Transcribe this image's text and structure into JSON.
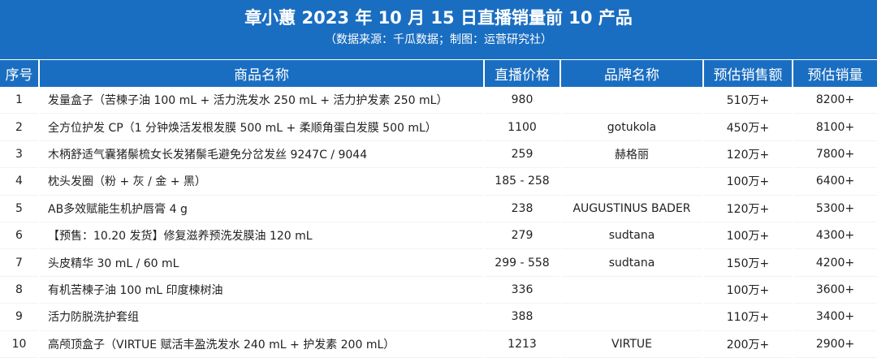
{
  "header": {
    "title": "章小蕙 2023 年 10 月 15 日直播销量前 10 产品",
    "subtitle": "（数据来源：千瓜数据；制图：运营研究社）"
  },
  "colors": {
    "accent": "#1a6ec1",
    "text": "#222222",
    "background": "#ffffff"
  },
  "table": {
    "columns": [
      "序号",
      "商品名称",
      "直播价格",
      "品牌名称",
      "预估销售额",
      "预估销量"
    ],
    "rows": [
      {
        "rank": "1",
        "name": "发量盒子（苦楝子油 100 mL + 活力洗发水 250 mL + 活力护发素 250 mL）",
        "price": "980",
        "brand": "",
        "sales": "510万+",
        "volume": "8200+"
      },
      {
        "rank": "2",
        "name": "全方位护发 CP（1 分钟焕活发根发膜 500 mL + 柔顺角蛋白发膜 500 mL）",
        "price": "1100",
        "brand": "gotukola",
        "sales": "450万+",
        "volume": "8100+"
      },
      {
        "rank": "3",
        "name": "木柄舒适气囊猪鬃梳女长发猪鬃毛避免分岔发丝 9247C / 9044",
        "price": "259",
        "brand": "赫格丽",
        "sales": "120万+",
        "volume": "7800+"
      },
      {
        "rank": "4",
        "name": "枕头发圈（粉 + 灰 / 金 + 黑）",
        "price": "185 - 258",
        "brand": "",
        "sales": "100万+",
        "volume": "6400+"
      },
      {
        "rank": "5",
        "name": "AB多效赋能生机护唇膏 4 g",
        "price": "238",
        "brand": "AUGUSTINUS BADER",
        "sales": "120万+",
        "volume": "5300+"
      },
      {
        "rank": "6",
        "name": "【预售：10.20 发货】修复滋养预洗发膜油 120 mL",
        "price": "279",
        "brand": "sudtana",
        "sales": "100万+",
        "volume": "4300+"
      },
      {
        "rank": "7",
        "name": "头皮精华 30 mL / 60 mL",
        "price": "299 - 558",
        "brand": "sudtana",
        "sales": "150万+",
        "volume": "4200+"
      },
      {
        "rank": "8",
        "name": "有机苦楝子油 100 mL 印度楝树油",
        "price": "336",
        "brand": "",
        "sales": "100万+",
        "volume": "3600+"
      },
      {
        "rank": "9",
        "name": "活力防脱洗护套组",
        "price": "388",
        "brand": "",
        "sales": "110万+",
        "volume": "3400+"
      },
      {
        "rank": "10",
        "name": "高颅顶盒子（VIRTUE 赋活丰盈洗发水 240 mL + 护发素 200 mL）",
        "price": "1213",
        "brand": "VIRTUE",
        "sales": "200万+",
        "volume": "2900+"
      }
    ]
  }
}
